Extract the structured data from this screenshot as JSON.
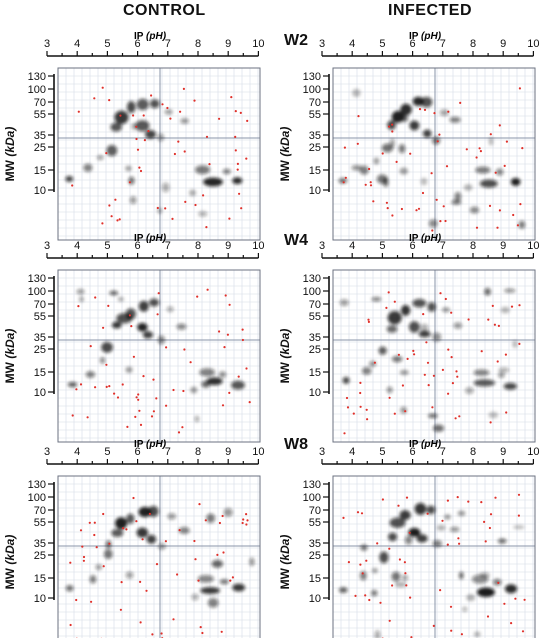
{
  "columns": [
    "CONTROL",
    "INFECTED"
  ],
  "rows": [
    "W2",
    "W4",
    "W8"
  ],
  "axes": {
    "ip_label": "IP",
    "ip_unit": "(pH)",
    "ip_ticks": [
      "3",
      "4",
      "5",
      "6",
      "7",
      "8",
      "9",
      "10"
    ],
    "mw_label": "MW",
    "mw_unit": "(kDa)",
    "mw_ticks": [
      "130",
      "100",
      "70",
      "55",
      "35",
      "25",
      "15",
      "10"
    ]
  },
  "colors": {
    "grid": "#d6dbe6",
    "frame": "#6b7280",
    "crosshair": "#8a94a8",
    "spot": "#111111",
    "marker": "#e0302a"
  },
  "chart_data": []
}
